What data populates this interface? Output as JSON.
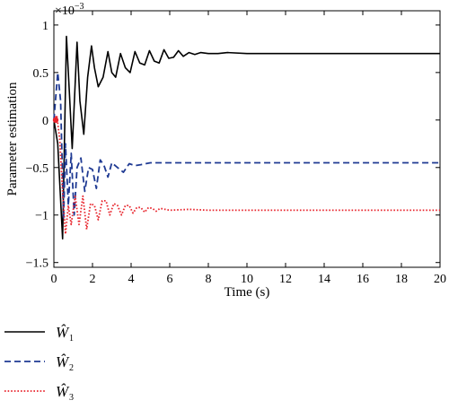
{
  "chart_data": {
    "type": "line",
    "title": "",
    "xlabel": "Time (s)",
    "ylabel": "Parameter estimation",
    "y_multiplier_label": "×10",
    "y_multiplier_exponent": "−3",
    "xlim": [
      0,
      20
    ],
    "ylim": [
      -1.55,
      1.15
    ],
    "x_ticks": [
      0,
      2,
      4,
      6,
      8,
      10,
      12,
      14,
      16,
      18,
      20
    ],
    "x_tick_labels": [
      "0",
      "2",
      "4",
      "6",
      "8",
      "10",
      "12",
      "14",
      "16",
      "18",
      "20"
    ],
    "y_ticks": [
      -1.5,
      -1,
      -0.5,
      0,
      0.5,
      1
    ],
    "y_tick_labels": [
      "−1.5",
      "−1",
      "−0.5",
      "0",
      "0.5",
      "1"
    ],
    "grid": false,
    "legend_position": "below",
    "series": [
      {
        "name": "W1",
        "legend_main": "Ŵ",
        "legend_sub": "1",
        "color": "#000000",
        "style": "solid",
        "x": [
          0,
          0.2,
          0.45,
          0.65,
          0.8,
          0.95,
          1.05,
          1.2,
          1.35,
          1.55,
          1.75,
          1.95,
          2.1,
          2.3,
          2.55,
          2.8,
          3.0,
          3.2,
          3.45,
          3.7,
          3.95,
          4.2,
          4.45,
          4.7,
          4.95,
          5.2,
          5.45,
          5.7,
          5.95,
          6.2,
          6.45,
          6.7,
          7.0,
          7.3,
          7.6,
          8.0,
          8.5,
          9.0,
          10.0,
          12.0,
          14.0,
          16.0,
          18.0,
          20.0
        ],
        "y": [
          0,
          -0.25,
          -1.25,
          0.88,
          0.3,
          -0.3,
          0.15,
          0.82,
          0.2,
          -0.15,
          0.45,
          0.78,
          0.55,
          0.35,
          0.45,
          0.72,
          0.5,
          0.45,
          0.7,
          0.55,
          0.5,
          0.72,
          0.6,
          0.58,
          0.73,
          0.62,
          0.6,
          0.74,
          0.65,
          0.66,
          0.73,
          0.67,
          0.71,
          0.69,
          0.71,
          0.7,
          0.7,
          0.71,
          0.7,
          0.7,
          0.7,
          0.7,
          0.7,
          0.7
        ]
      },
      {
        "name": "W2",
        "legend_main": "Ŵ",
        "legend_sub": "2",
        "color": "#1f3a93",
        "style": "dashed",
        "x": [
          0,
          0.2,
          0.35,
          0.5,
          0.6,
          0.75,
          0.9,
          1.05,
          1.2,
          1.4,
          1.6,
          1.8,
          2.0,
          2.2,
          2.4,
          2.6,
          2.8,
          3.0,
          3.3,
          3.6,
          3.9,
          4.2,
          4.5,
          5.0,
          5.5,
          6.0,
          7.0,
          8.0,
          10.0,
          12.0,
          14.0,
          16.0,
          18.0,
          20.0
        ],
        "y": [
          0,
          0.5,
          0.2,
          -1.05,
          -0.25,
          -0.9,
          -0.35,
          -1.0,
          -0.5,
          -0.4,
          -0.75,
          -0.5,
          -0.52,
          -0.72,
          -0.42,
          -0.48,
          -0.6,
          -0.45,
          -0.5,
          -0.55,
          -0.46,
          -0.48,
          -0.47,
          -0.45,
          -0.45,
          -0.45,
          -0.45,
          -0.45,
          -0.45,
          -0.45,
          -0.45,
          -0.45,
          -0.45,
          -0.45
        ]
      },
      {
        "name": "W3",
        "legend_main": "Ŵ",
        "legend_sub": "3",
        "color": "#e8242c",
        "style": "dotted",
        "x": [
          0,
          0.15,
          0.3,
          0.45,
          0.6,
          0.75,
          0.9,
          1.1,
          1.3,
          1.5,
          1.7,
          1.9,
          2.1,
          2.3,
          2.5,
          2.7,
          2.9,
          3.1,
          3.3,
          3.5,
          3.7,
          3.9,
          4.1,
          4.3,
          4.5,
          4.7,
          4.9,
          5.1,
          5.3,
          5.5,
          6.0,
          7.0,
          8.0,
          10.0,
          12.0,
          14.0,
          16.0,
          18.0,
          20.0
        ],
        "y": [
          0,
          0.05,
          -0.2,
          -0.75,
          -1.2,
          -0.9,
          -1.1,
          -0.8,
          -1.1,
          -0.8,
          -1.15,
          -0.88,
          -0.9,
          -1.05,
          -0.85,
          -0.85,
          -1.0,
          -0.88,
          -0.9,
          -1.0,
          -0.9,
          -0.9,
          -0.98,
          -0.92,
          -0.92,
          -0.97,
          -0.92,
          -0.93,
          -0.96,
          -0.93,
          -0.95,
          -0.94,
          -0.95,
          -0.95,
          -0.95,
          -0.95,
          -0.95,
          -0.95,
          -0.95
        ]
      }
    ]
  }
}
